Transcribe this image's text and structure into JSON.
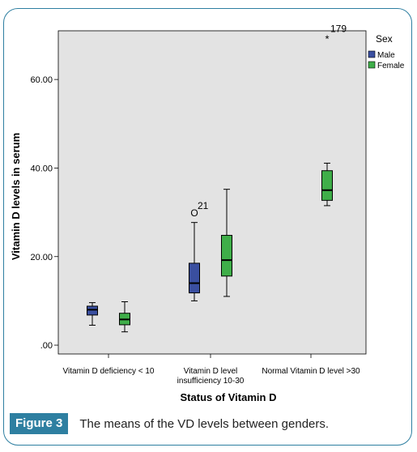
{
  "chart_data": {
    "type": "boxplot",
    "xlabel": "Status of Vitamin D",
    "ylabel": "Vitamin D levels in serum",
    "ylim": [
      -2,
      71
    ],
    "yticks": [
      {
        "value": 0,
        "label": ".00"
      },
      {
        "value": 20,
        "label": "20.00"
      },
      {
        "value": 40,
        "label": "40.00"
      },
      {
        "value": 60,
        "label": "60.00"
      }
    ],
    "categories": [
      [
        "Vitamin D deficiency < 10"
      ],
      [
        "Vitamin D level",
        "insufficiency 10-30"
      ],
      [
        "Normal Vitamin D level >30"
      ]
    ],
    "legend": {
      "title": "Sex",
      "position": "right",
      "entries": [
        {
          "name": "Male",
          "color": "#3a4fa0"
        },
        {
          "name": "Female",
          "color": "#3fae49"
        }
      ]
    },
    "series": [
      {
        "name": "Male",
        "color": "#3a4fa0",
        "boxes": [
          {
            "category": 0,
            "min": 4.5,
            "q1": 6.8,
            "median": 8.0,
            "q3": 8.8,
            "max": 9.6
          },
          {
            "category": 1,
            "min": 10.0,
            "q1": 11.8,
            "median": 14.0,
            "q3": 18.5,
            "max": 27.7
          }
        ],
        "outliers": [
          {
            "category": 1,
            "value": 30.0,
            "marker": "O",
            "label": "21"
          }
        ]
      },
      {
        "name": "Female",
        "color": "#3fae49",
        "boxes": [
          {
            "category": 0,
            "min": 3.0,
            "q1": 4.6,
            "median": 5.8,
            "q3": 7.2,
            "max": 9.8
          },
          {
            "category": 1,
            "min": 11.0,
            "q1": 15.6,
            "median": 19.2,
            "q3": 24.8,
            "max": 35.2
          },
          {
            "category": 2,
            "min": 31.5,
            "q1": 32.7,
            "median": 35.0,
            "q3": 39.4,
            "max": 41.1
          }
        ],
        "outliers": [
          {
            "category": 2,
            "value": 70.0,
            "marker": "*",
            "label": "179"
          }
        ]
      }
    ]
  },
  "caption": {
    "label": "Figure 3",
    "text": "The means of the VD levels between genders."
  },
  "colors": {
    "plot_background": "#e3e3e3",
    "frame_border": "#2e7fa1",
    "caption_label_bg": "#2e7fa1"
  }
}
